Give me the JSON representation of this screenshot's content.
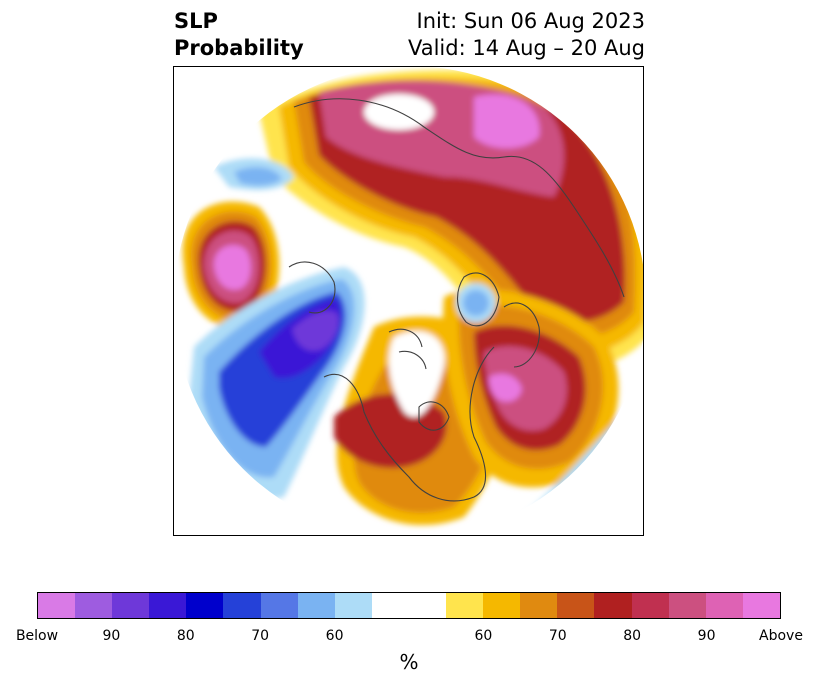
{
  "title": {
    "left_line1": "SLP",
    "left_line2": "Probability",
    "right_line1": "Init: Sun 06 Aug 2023",
    "right_line2": "Valid: 14 Aug – 20 Aug"
  },
  "colorbar": {
    "colors": [
      "#d97ae6",
      "#9e5ce0",
      "#6e38d9",
      "#3a18d6",
      "#0000cc",
      "#2541d8",
      "#5577e6",
      "#7ab3f2",
      "#addcf7",
      "#ffffff",
      "#ffffff",
      "#ffe44d",
      "#f5b800",
      "#e08a10",
      "#c85418",
      "#b02020",
      "#c03050",
      "#cc5080",
      "#de62b4",
      "#e878e0"
    ],
    "tick_labels": [
      "Below",
      "90",
      "80",
      "70",
      "60",
      "60",
      "70",
      "80",
      "90",
      "Above"
    ],
    "unit": "%"
  },
  "map": {
    "projection": "north-polar-stereographic",
    "palette": {
      "above_high": "#e878e0",
      "above_90": "#cc5080",
      "above_80": "#b02020",
      "above_70": "#e08a10",
      "above_60": "#f5b800",
      "above_50": "#ffe44d",
      "below_50": "#addcf7",
      "below_60": "#7ab3f2",
      "below_70": "#2541d8",
      "below_80": "#3a18d6",
      "below_90": "#6e38d9",
      "coast": "#404040"
    }
  }
}
